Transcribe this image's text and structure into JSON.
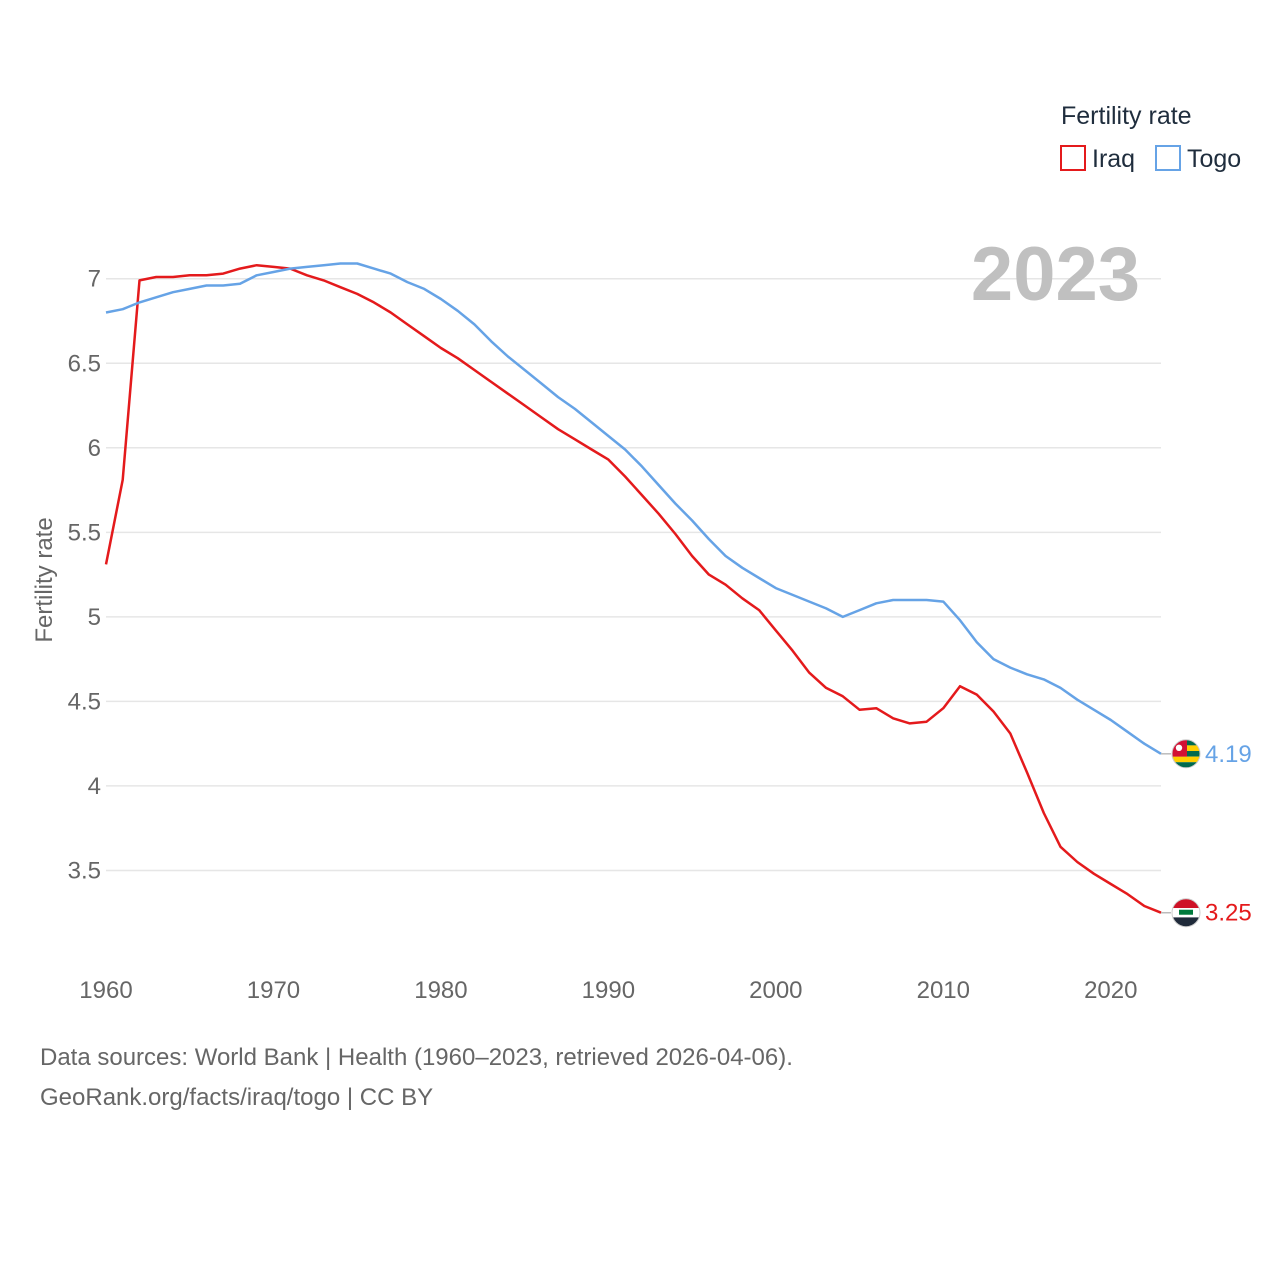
{
  "chart_data": {
    "type": "line",
    "title": "",
    "xlabel": "",
    "ylabel": "Fertility rate",
    "xlim": [
      1960,
      2023
    ],
    "ylim": [
      3.0,
      7.3
    ],
    "x_ticks": [
      1960,
      1970,
      1980,
      1990,
      2000,
      2010,
      2020
    ],
    "y_ticks": [
      3.5,
      4,
      4.5,
      5,
      5.5,
      6,
      6.5,
      7
    ],
    "y_tick_labels": [
      "3.5",
      "4",
      "4.5",
      "5",
      "5.5",
      "6",
      "6.5",
      "7"
    ],
    "grid": true,
    "legend": {
      "title": "Fertility rate",
      "position": "top-right"
    },
    "year_label": "2023",
    "x": [
      1960,
      1961,
      1962,
      1963,
      1964,
      1965,
      1966,
      1967,
      1968,
      1969,
      1970,
      1971,
      1972,
      1973,
      1974,
      1975,
      1976,
      1977,
      1978,
      1979,
      1980,
      1981,
      1982,
      1983,
      1984,
      1985,
      1986,
      1987,
      1988,
      1989,
      1990,
      1991,
      1992,
      1993,
      1994,
      1995,
      1996,
      1997,
      1998,
      1999,
      2000,
      2001,
      2002,
      2003,
      2004,
      2005,
      2006,
      2007,
      2008,
      2009,
      2010,
      2011,
      2012,
      2013,
      2014,
      2015,
      2016,
      2017,
      2018,
      2019,
      2020,
      2021,
      2022,
      2023
    ],
    "series": [
      {
        "name": "Iraq",
        "color": "#e41a1c",
        "end_label": "3.25",
        "values": [
          5.31,
          5.81,
          6.99,
          7.01,
          7.01,
          7.02,
          7.02,
          7.03,
          7.06,
          7.08,
          7.07,
          7.06,
          7.02,
          6.99,
          6.95,
          6.91,
          6.86,
          6.8,
          6.73,
          6.66,
          6.59,
          6.53,
          6.46,
          6.39,
          6.32,
          6.25,
          6.18,
          6.11,
          6.05,
          5.99,
          5.93,
          5.83,
          5.72,
          5.61,
          5.49,
          5.36,
          5.25,
          5.19,
          5.11,
          5.04,
          4.92,
          4.8,
          4.67,
          4.58,
          4.53,
          4.45,
          4.46,
          4.4,
          4.37,
          4.38,
          4.46,
          4.59,
          4.54,
          4.44,
          4.31,
          4.08,
          3.84,
          3.64,
          3.55,
          3.48,
          3.42,
          3.36,
          3.29,
          3.25
        ]
      },
      {
        "name": "Togo",
        "color": "#66a3e6",
        "end_label": "4.19",
        "values": [
          6.8,
          6.82,
          6.86,
          6.89,
          6.92,
          6.94,
          6.96,
          6.96,
          6.97,
          7.02,
          7.04,
          7.06,
          7.07,
          7.08,
          7.09,
          7.09,
          7.06,
          7.03,
          6.98,
          6.94,
          6.88,
          6.81,
          6.73,
          6.63,
          6.54,
          6.46,
          6.38,
          6.3,
          6.23,
          6.15,
          6.07,
          5.99,
          5.89,
          5.78,
          5.67,
          5.57,
          5.46,
          5.36,
          5.29,
          5.23,
          5.17,
          5.13,
          5.09,
          5.05,
          5.0,
          5.04,
          5.08,
          5.1,
          5.1,
          5.1,
          5.09,
          4.98,
          4.85,
          4.75,
          4.7,
          4.66,
          4.63,
          4.58,
          4.51,
          4.45,
          4.39,
          4.32,
          4.25,
          4.19
        ]
      }
    ]
  },
  "footer": {
    "line1": "Data sources: World Bank | Health (1960–2023, retrieved 2026-04-06).",
    "line2": "GeoRank.org/facts/iraq/togo | CC BY"
  }
}
